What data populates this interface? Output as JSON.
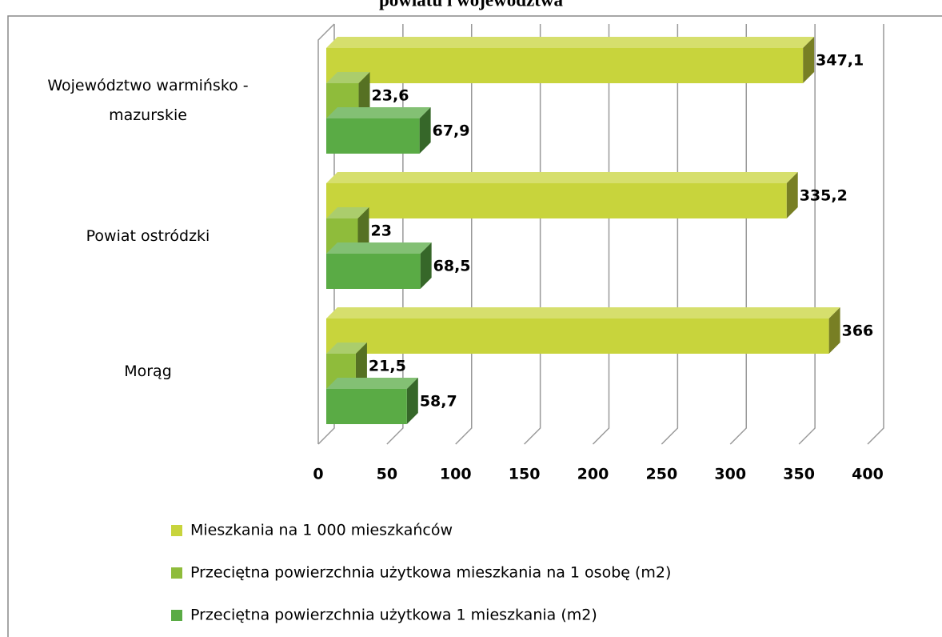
{
  "chart_data": {
    "type": "bar3d_horizontal",
    "title": "powiatu i województwa",
    "categories": [
      "Województwo warmińsko - mazurskie",
      "Powiat ostródzki",
      "Morąg"
    ],
    "series": [
      {
        "name": "Mieszkania na 1 000 mieszkańców",
        "color": "#c8d43c",
        "values": [
          347.1,
          335.2,
          366
        ],
        "value_labels": [
          "347,1",
          "335,2",
          "366"
        ]
      },
      {
        "name": "Przeciętna powierzchnia użytkowa mieszkania na 1 osobę (m2)",
        "color": "#8fbc3b",
        "values": [
          23.6,
          23,
          21.5
        ],
        "value_labels": [
          "23,6",
          "23",
          "21,5"
        ]
      },
      {
        "name": "Przeciętna powierzchnia użytkowa 1 mieszkania (m2)",
        "color": "#5aab45",
        "values": [
          67.9,
          68.5,
          58.7
        ],
        "value_labels": [
          "67,9",
          "68,5",
          "58,7"
        ]
      }
    ],
    "xlim": [
      0,
      400
    ],
    "xticks": [
      0,
      50,
      100,
      150,
      200,
      250,
      300,
      350,
      400
    ],
    "grid": true,
    "legend": "bottom"
  }
}
